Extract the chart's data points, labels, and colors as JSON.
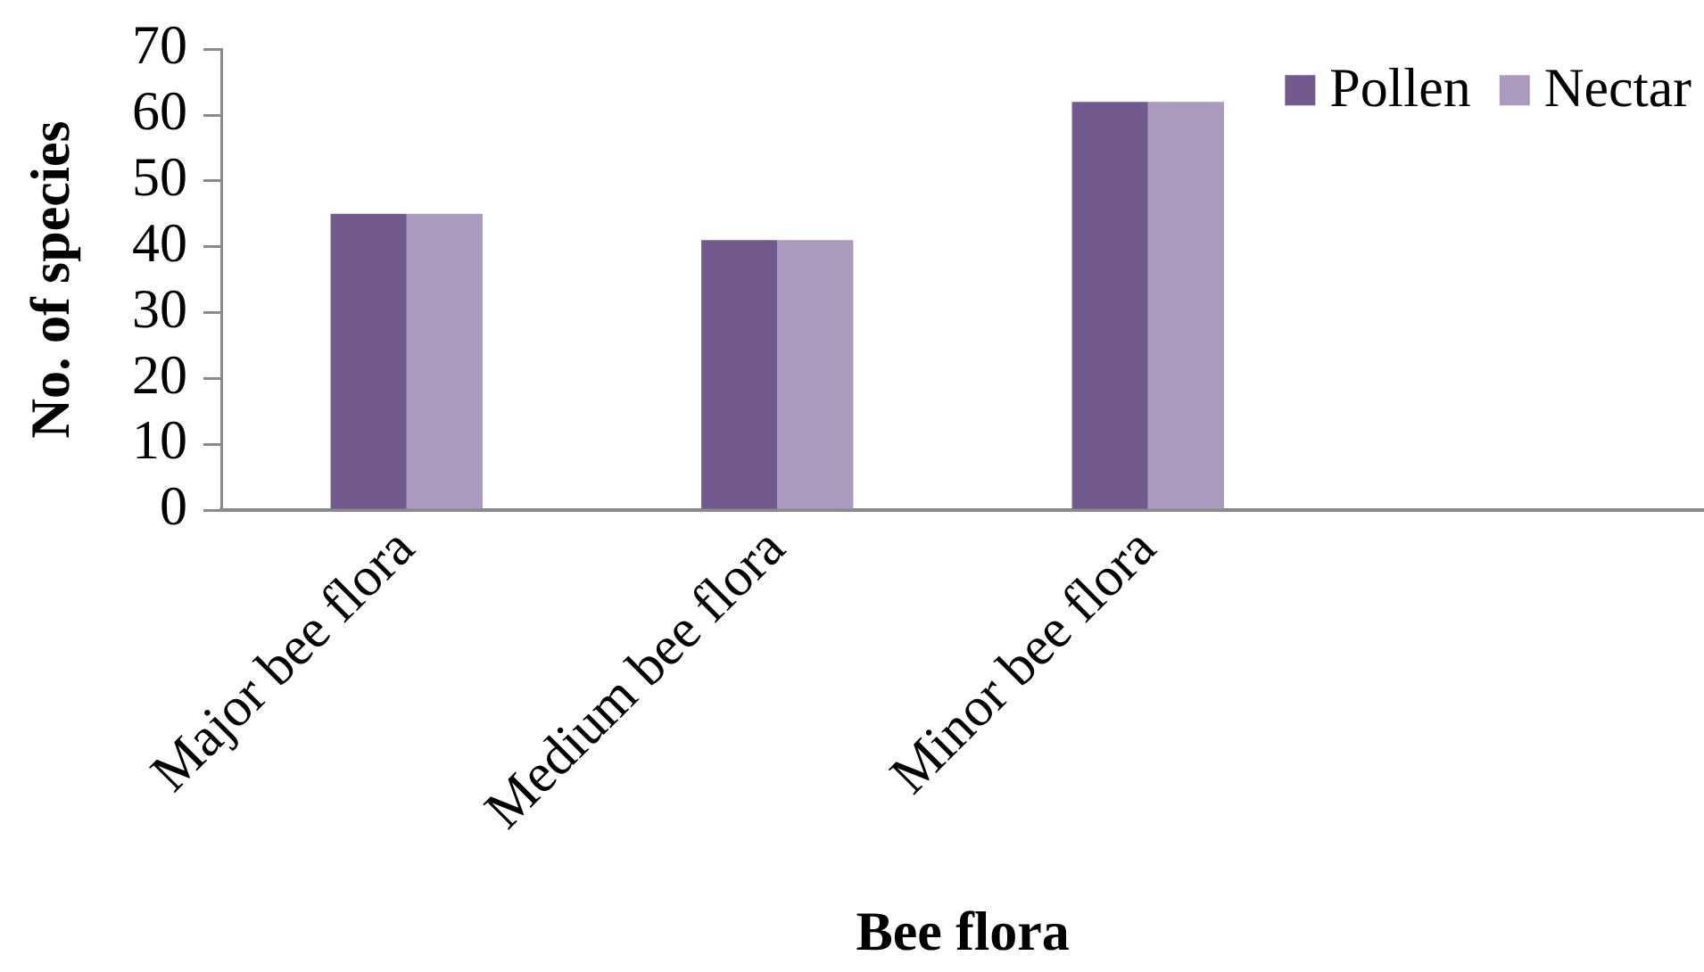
{
  "chart_data": {
    "type": "bar",
    "xlabel": "Bee flora",
    "ylabel": "No. of species",
    "categories": [
      "Major bee flora",
      "Medium bee flora",
      "Minor bee flora",
      null
    ],
    "series": [
      {
        "name": "Pollen",
        "color": "#725a8f",
        "values": [
          45,
          41,
          62,
          null
        ]
      },
      {
        "name": "Nectar",
        "color": "#a99abe",
        "values": [
          45,
          41,
          62,
          null
        ]
      }
    ],
    "ylim": [
      0,
      70
    ],
    "yticks": [
      0,
      10,
      20,
      30,
      40,
      50,
      60,
      70
    ],
    "grid": false,
    "legend": "top right"
  }
}
